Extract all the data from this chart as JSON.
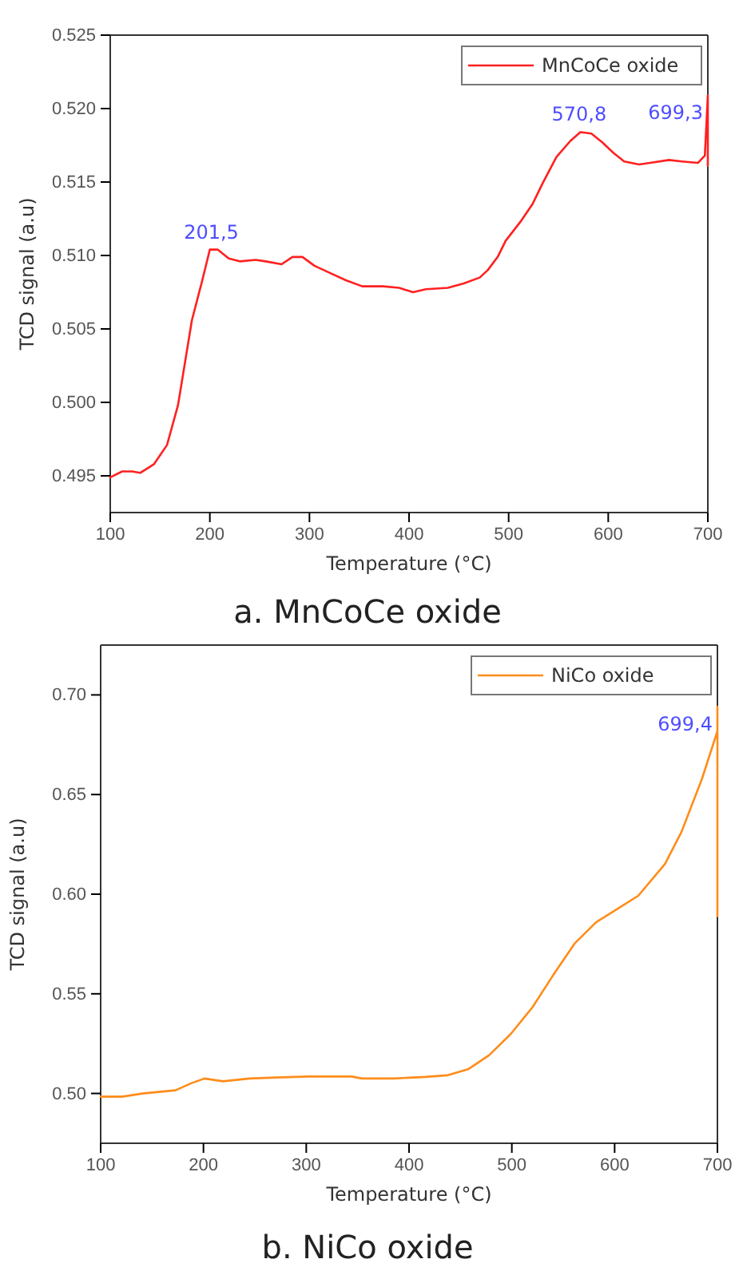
{
  "chart_data": [
    {
      "type": "line",
      "title": "a. MnCoCe oxide",
      "xlabel": "Temperature (°C)",
      "ylabel": "TCD signal (a.u)",
      "xlim": [
        100,
        700
      ],
      "xticks": [
        100,
        200,
        300,
        400,
        500,
        600,
        700
      ],
      "ylim": [
        0.4925,
        0.525
      ],
      "yticks": [
        {
          "value": 0.495,
          "label": "0.495"
        },
        {
          "value": 0.5,
          "label": "0.500"
        },
        {
          "value": 0.505,
          "label": "0.505"
        },
        {
          "value": 0.51,
          "label": "0.510"
        },
        {
          "value": 0.515,
          "label": "0.515"
        },
        {
          "value": 0.52,
          "label": "0.520"
        },
        {
          "value": 0.525,
          "label": "0.525"
        }
      ],
      "legend": "top right",
      "grid": false,
      "x": [
        100,
        112,
        122,
        130,
        144,
        157,
        168,
        182,
        192,
        200,
        208,
        219,
        230,
        246,
        256,
        272,
        283,
        293,
        305,
        321,
        337,
        353,
        374,
        390,
        404,
        417,
        439,
        455,
        471,
        479,
        489,
        497,
        513,
        524,
        534,
        548,
        562,
        572,
        583,
        594,
        605,
        616,
        631,
        642,
        661,
        674,
        690,
        697,
        700,
        700
      ],
      "series": [
        {
          "name": "MnCoCe oxide",
          "color": "#ff2020",
          "values": [
            0.4949,
            0.4953,
            0.4953,
            0.4952,
            0.4958,
            0.4971,
            0.4998,
            0.5056,
            0.5082,
            0.5104,
            0.5104,
            0.5098,
            0.5096,
            0.5097,
            0.5096,
            0.5094,
            0.5099,
            0.5099,
            0.5093,
            0.5088,
            0.5083,
            0.5079,
            0.5079,
            0.5078,
            0.5075,
            0.5077,
            0.5078,
            0.5081,
            0.5085,
            0.509,
            0.5099,
            0.511,
            0.5124,
            0.5135,
            0.5149,
            0.5167,
            0.5178,
            0.5184,
            0.5183,
            0.5177,
            0.517,
            0.5164,
            0.5162,
            0.5163,
            0.5165,
            0.5164,
            0.5163,
            0.5168,
            0.5209,
            0.5161
          ]
        }
      ],
      "annotations": [
        {
          "text": "201,5",
          "x": 201.5,
          "y": 0.5104
        },
        {
          "text": "570,8",
          "x": 570.8,
          "y": 0.5184
        },
        {
          "text": "699,3",
          "x": 699.3,
          "y": 0.5209
        }
      ]
    },
    {
      "type": "line",
      "title": "b. NiCo oxide",
      "xlabel": "Temperature (°C)",
      "ylabel": "TCD signal (a.u)",
      "xlim": [
        100,
        700
      ],
      "xticks": [
        100,
        200,
        300,
        400,
        500,
        600,
        700
      ],
      "ylim": [
        0.475,
        0.725
      ],
      "yticks": [
        {
          "value": 0.5,
          "label": "0.50"
        },
        {
          "value": 0.55,
          "label": "0.55"
        },
        {
          "value": 0.6,
          "label": "0.60"
        },
        {
          "value": 0.65,
          "label": "0.65"
        },
        {
          "value": 0.7,
          "label": "0.70"
        }
      ],
      "legend": "top right",
      "grid": false,
      "x": [
        100,
        121,
        141,
        157,
        173,
        188,
        201,
        219,
        245,
        271,
        302,
        344,
        354,
        385,
        416,
        437,
        458,
        478,
        499,
        520,
        540,
        561,
        582,
        600,
        623,
        649,
        665,
        685,
        700,
        700,
        700
      ],
      "series": [
        {
          "name": "NiCo oxide",
          "color": "#ff8c1a",
          "values": [
            0.4984,
            0.4984,
            0.5,
            0.5008,
            0.5016,
            0.5051,
            0.5075,
            0.5061,
            0.5075,
            0.508,
            0.5085,
            0.5085,
            0.5075,
            0.5075,
            0.5083,
            0.5091,
            0.5123,
            0.5192,
            0.5299,
            0.5432,
            0.5592,
            0.5752,
            0.5859,
            0.5917,
            0.5992,
            0.6152,
            0.6312,
            0.6579,
            0.6819,
            0.694,
            0.589
          ]
        }
      ],
      "annotations": [
        {
          "text": "699,4",
          "x": 699.4,
          "y": 0.694
        }
      ]
    }
  ]
}
